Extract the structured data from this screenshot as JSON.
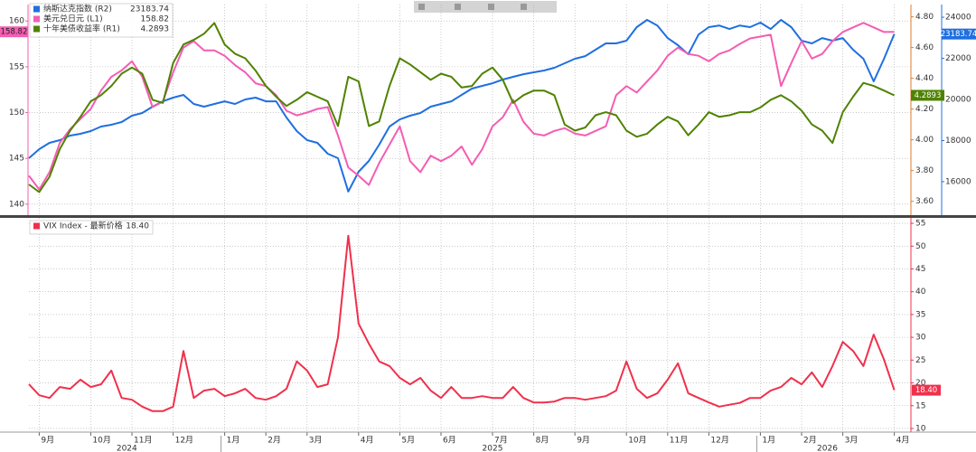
{
  "chart_data": [
    {
      "type": "line",
      "ylim": [
        138.8,
        161.8
      ],
      "yticks": [
        140,
        145,
        150,
        155,
        160
      ],
      "y2lim": [
        3.51,
        4.88
      ],
      "y2ticks": [
        {
          "value": 3.6,
          "label": "3.60"
        },
        {
          "value": 3.8,
          "label": "3.80"
        },
        {
          "value": 4.0,
          "label": "4.00"
        },
        {
          "value": 4.2,
          "label": "4.20"
        },
        {
          "value": 4.4,
          "label": "4.40"
        },
        {
          "value": 4.6,
          "label": "4.60"
        },
        {
          "value": 4.8,
          "label": "4.80"
        }
      ],
      "y3lim": [
        14370,
        24620
      ],
      "y3ticks": [
        16000,
        18000,
        20000,
        22000,
        24000
      ],
      "grid": true,
      "series": [
        {
          "name": "纳斯达克指数 (R2)",
          "color": "#1f6fe0",
          "axis": "y3",
          "values": [
            17140,
            17580,
            17890,
            18020,
            18240,
            18330,
            18460,
            18680,
            18770,
            18900,
            19210,
            19340,
            19650,
            19910,
            20090,
            20220,
            19780,
            19650,
            19780,
            19910,
            19780,
            20000,
            20090,
            19910,
            19910,
            19120,
            18460,
            18020,
            17890,
            17360,
            17140,
            15520,
            16480,
            17010,
            17800,
            18680,
            19030,
            19210,
            19340,
            19650,
            19780,
            19910,
            20220,
            20530,
            20660,
            20790,
            20970,
            21100,
            21230,
            21320,
            21410,
            21540,
            21760,
            21980,
            22110,
            22420,
            22730,
            22730,
            22860,
            23520,
            23870,
            23600,
            22990,
            22640,
            22200,
            23160,
            23520,
            23600,
            23430,
            23600,
            23520,
            23740,
            23430,
            23870,
            23520,
            22860,
            22730,
            22990,
            22860,
            22990,
            22420,
            21980,
            20880,
            21980,
            23183.74
          ]
        },
        {
          "name": "美元兑日元 (L1)",
          "color": "#f45db3",
          "axis": "y",
          "values": [
            143.1,
            141.6,
            143.5,
            146.7,
            148.2,
            149.3,
            150.4,
            152.4,
            153.9,
            154.6,
            155.6,
            153.9,
            150.6,
            151.2,
            154.4,
            157.1,
            157.8,
            156.8,
            156.8,
            156.2,
            155.2,
            154.4,
            153.2,
            152.9,
            151.9,
            150.2,
            149.7,
            150.0,
            150.4,
            150.6,
            147.5,
            144.0,
            143.1,
            142.1,
            144.5,
            146.5,
            148.5,
            144.7,
            143.5,
            145.3,
            144.7,
            145.3,
            146.3,
            144.3,
            146.0,
            148.5,
            149.5,
            151.4,
            149.0,
            147.7,
            147.5,
            148.0,
            148.3,
            147.7,
            147.5,
            148.0,
            148.5,
            151.9,
            152.9,
            152.2,
            153.4,
            154.6,
            156.2,
            157.1,
            156.4,
            156.2,
            155.6,
            156.4,
            156.8,
            157.5,
            158.1,
            158.3,
            158.5,
            152.9,
            155.4,
            157.8,
            155.9,
            156.4,
            157.8,
            158.8,
            159.3,
            159.8,
            159.3,
            158.8,
            158.82
          ]
        },
        {
          "name": "十年美债收益率 (R1)",
          "color": "#4f8200",
          "axis": "y2",
          "values": [
            3.71,
            3.66,
            3.76,
            3.94,
            4.06,
            4.15,
            4.25,
            4.29,
            4.35,
            4.43,
            4.47,
            4.43,
            4.26,
            4.24,
            4.5,
            4.62,
            4.65,
            4.69,
            4.76,
            4.62,
            4.56,
            4.53,
            4.45,
            4.35,
            4.28,
            4.22,
            4.26,
            4.31,
            4.28,
            4.25,
            4.09,
            4.41,
            4.38,
            4.09,
            4.12,
            4.35,
            4.53,
            4.49,
            4.44,
            4.39,
            4.43,
            4.41,
            4.34,
            4.35,
            4.43,
            4.47,
            4.39,
            4.24,
            4.29,
            4.32,
            4.32,
            4.29,
            4.1,
            4.06,
            4.08,
            4.16,
            4.18,
            4.16,
            4.06,
            4.02,
            4.04,
            4.1,
            4.15,
            4.12,
            4.03,
            4.1,
            4.18,
            4.15,
            4.16,
            4.18,
            4.18,
            4.21,
            4.26,
            4.29,
            4.25,
            4.19,
            4.1,
            4.06,
            3.98,
            4.18,
            4.28,
            4.37,
            4.35,
            4.32,
            4.2893
          ]
        }
      ]
    },
    {
      "type": "line",
      "categories": [
        null,
        "9月",
        null,
        null,
        null,
        null,
        "10月",
        null,
        null,
        null,
        "11月",
        null,
        null,
        null,
        "12月",
        null,
        null,
        null,
        null,
        "1月",
        null,
        null,
        null,
        "2月",
        null,
        null,
        null,
        "3月",
        null,
        null,
        null,
        null,
        "4月",
        null,
        null,
        null,
        "5月",
        null,
        null,
        null,
        "6月",
        null,
        null,
        null,
        null,
        "7月",
        null,
        null,
        null,
        "8月",
        null,
        null,
        null,
        "9月",
        null,
        null,
        null,
        null,
        "10月",
        null,
        null,
        null,
        "11月",
        null,
        null,
        null,
        "12月",
        null,
        null,
        null,
        null,
        "1月",
        null,
        null,
        null,
        "2月",
        null,
        null,
        null,
        "3月",
        null,
        null,
        null,
        null,
        "4月"
      ],
      "years": [
        "2024",
        "2025",
        "2026"
      ],
      "ylim": [
        9.2,
        56.2
      ],
      "yticks": [
        10,
        15,
        20,
        25,
        30,
        35,
        40,
        45,
        50,
        55
      ],
      "grid": true,
      "series": [
        {
          "name": "VIX Index - 最新价格",
          "color": "#f0304c",
          "axis": "y",
          "values": [
            19.7,
            17.3,
            16.7,
            19.1,
            18.7,
            20.7,
            19.1,
            19.7,
            22.7,
            16.7,
            16.3,
            14.8,
            13.8,
            13.8,
            14.8,
            27.0,
            16.7,
            18.3,
            18.7,
            17.1,
            17.7,
            18.7,
            16.7,
            16.3,
            17.1,
            18.7,
            24.7,
            22.7,
            19.1,
            19.7,
            30.0,
            52.3,
            33.0,
            28.6,
            24.7,
            23.7,
            21.1,
            19.7,
            21.1,
            18.3,
            16.7,
            19.1,
            16.7,
            16.7,
            17.1,
            16.7,
            16.7,
            19.1,
            16.7,
            15.7,
            15.7,
            15.9,
            16.7,
            16.7,
            16.3,
            16.7,
            17.1,
            18.3,
            24.7,
            18.7,
            16.7,
            17.7,
            20.7,
            24.3,
            17.7,
            16.7,
            15.7,
            14.8,
            15.2,
            15.6,
            16.7,
            16.7,
            18.3,
            19.1,
            21.1,
            19.7,
            22.3,
            19.1,
            23.7,
            29.0,
            27.0,
            23.7,
            30.6,
            25.1,
            18.4
          ],
          "value_labels": [
            null,
            null,
            null,
            null,
            null,
            null,
            null,
            null,
            null,
            null,
            null,
            null,
            null,
            null,
            null,
            null,
            null,
            null,
            null,
            null,
            null,
            null,
            null,
            null,
            null,
            null,
            null,
            null,
            null,
            null,
            null,
            null,
            null,
            null,
            null,
            null,
            null,
            null,
            null,
            null,
            null,
            null,
            null,
            null,
            null,
            null,
            null,
            null,
            null,
            null,
            null,
            null,
            null,
            null,
            null,
            null,
            null,
            null,
            null,
            null,
            null,
            null,
            null,
            null,
            null,
            null,
            null,
            null,
            null,
            null,
            null,
            null,
            null,
            null,
            null,
            null,
            null,
            null,
            null,
            null,
            null,
            null,
            null,
            null,
            "18.40"
          ]
        }
      ]
    }
  ]
}
